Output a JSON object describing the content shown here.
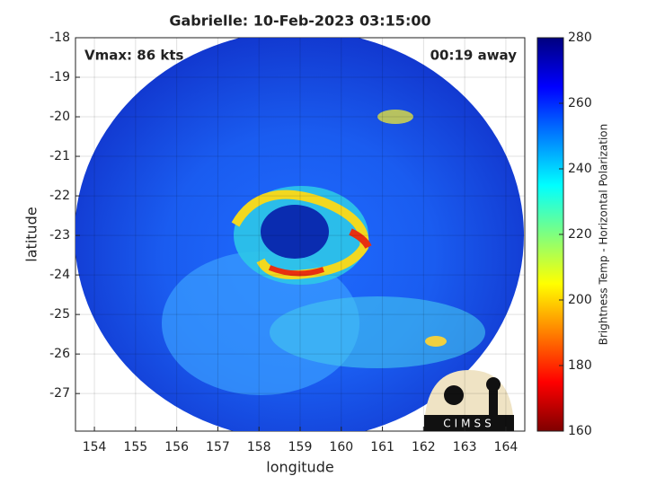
{
  "chart_data": {
    "type": "image",
    "title": "Gabrielle: 10-Feb-2023 03:15:00",
    "xlabel": "longitude",
    "ylabel": "latitude",
    "xlim": [
      153.54,
      164.46
    ],
    "ylim": [
      -27.95,
      -18
    ],
    "xticks": [
      154,
      155,
      156,
      157,
      158,
      159,
      160,
      161,
      162,
      163,
      164
    ],
    "yticks": [
      -27,
      -26,
      -25,
      -24,
      -23,
      -22,
      -21,
      -20,
      -19,
      -18
    ],
    "grid": true,
    "annotations": [
      "Vmax: 86 kts",
      "00:19 away"
    ],
    "logo": "CIMSS",
    "colorbar": {
      "label": "Brightness Temp - Horizontal Polarization",
      "lim": [
        160,
        280
      ],
      "ticks": [
        160,
        180,
        200,
        220,
        240,
        260,
        280
      ],
      "colormap": "jet"
    }
  }
}
